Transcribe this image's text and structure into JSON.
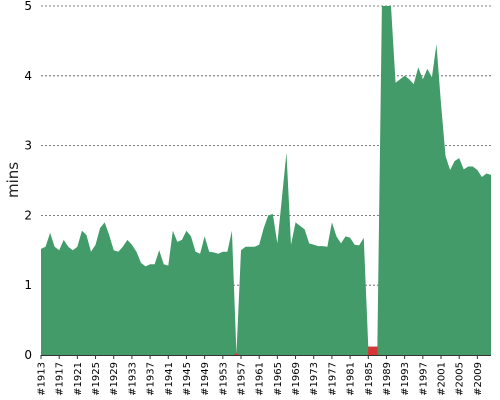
{
  "chart_data": {
    "type": "area",
    "ylabel": "mins",
    "xlabel": "",
    "title": "",
    "ylim": [
      0,
      5
    ],
    "yticks": [
      "0",
      "1",
      "2",
      "3",
      "4",
      "5"
    ],
    "grid": "horizontal dashed",
    "xticks": [
      "#1913",
      "#1917",
      "#1921",
      "#1925",
      "#1929",
      "#1933",
      "#1937",
      "#1941",
      "#1945",
      "#1949",
      "#1953",
      "#1957",
      "#1961",
      "#1965",
      "#1969",
      "#1973",
      "#1977",
      "#1981",
      "#1985",
      "#1989",
      "#1993",
      "#1997",
      "#2001",
      "#2005",
      "#2009"
    ],
    "x_start": 1913,
    "x_end": 2012,
    "colors": {
      "area": "#449b6a",
      "highlight": "#d63636"
    },
    "highlight_series": "red segments where value drops near zero",
    "series": [
      {
        "values": [
          1.52,
          1.55,
          1.75,
          1.55,
          1.5,
          1.65,
          1.55,
          1.5,
          1.55,
          1.78,
          1.72,
          1.48,
          1.58,
          1.82,
          1.9,
          1.72,
          1.5,
          1.48,
          1.55,
          1.65,
          1.58,
          1.48,
          1.32,
          1.27,
          1.3,
          1.3,
          1.5,
          1.3,
          1.28,
          1.78,
          1.62,
          1.65,
          1.78,
          1.7,
          1.48,
          1.45,
          1.7,
          1.48,
          1.47,
          1.45,
          1.48,
          1.48,
          1.78,
          0.02,
          1.5,
          1.55,
          1.55,
          1.55,
          1.58,
          1.82,
          2.0,
          2.02,
          1.6,
          2.25,
          2.9,
          1.58,
          1.9,
          1.85,
          1.8,
          1.6,
          1.58,
          1.56,
          1.56,
          1.55,
          1.9,
          1.7,
          1.6,
          1.7,
          1.68,
          1.58,
          1.57,
          1.68,
          0.12,
          0.12,
          0.12,
          5.0,
          5.0,
          5.0,
          3.9,
          3.95,
          4.0,
          3.95,
          3.88,
          4.12,
          3.95,
          4.1,
          3.98,
          4.45,
          3.6,
          2.85,
          2.65,
          2.78,
          2.82,
          2.66,
          2.7,
          2.7,
          2.65,
          2.55,
          2.6,
          2.58
        ]
      }
    ]
  }
}
